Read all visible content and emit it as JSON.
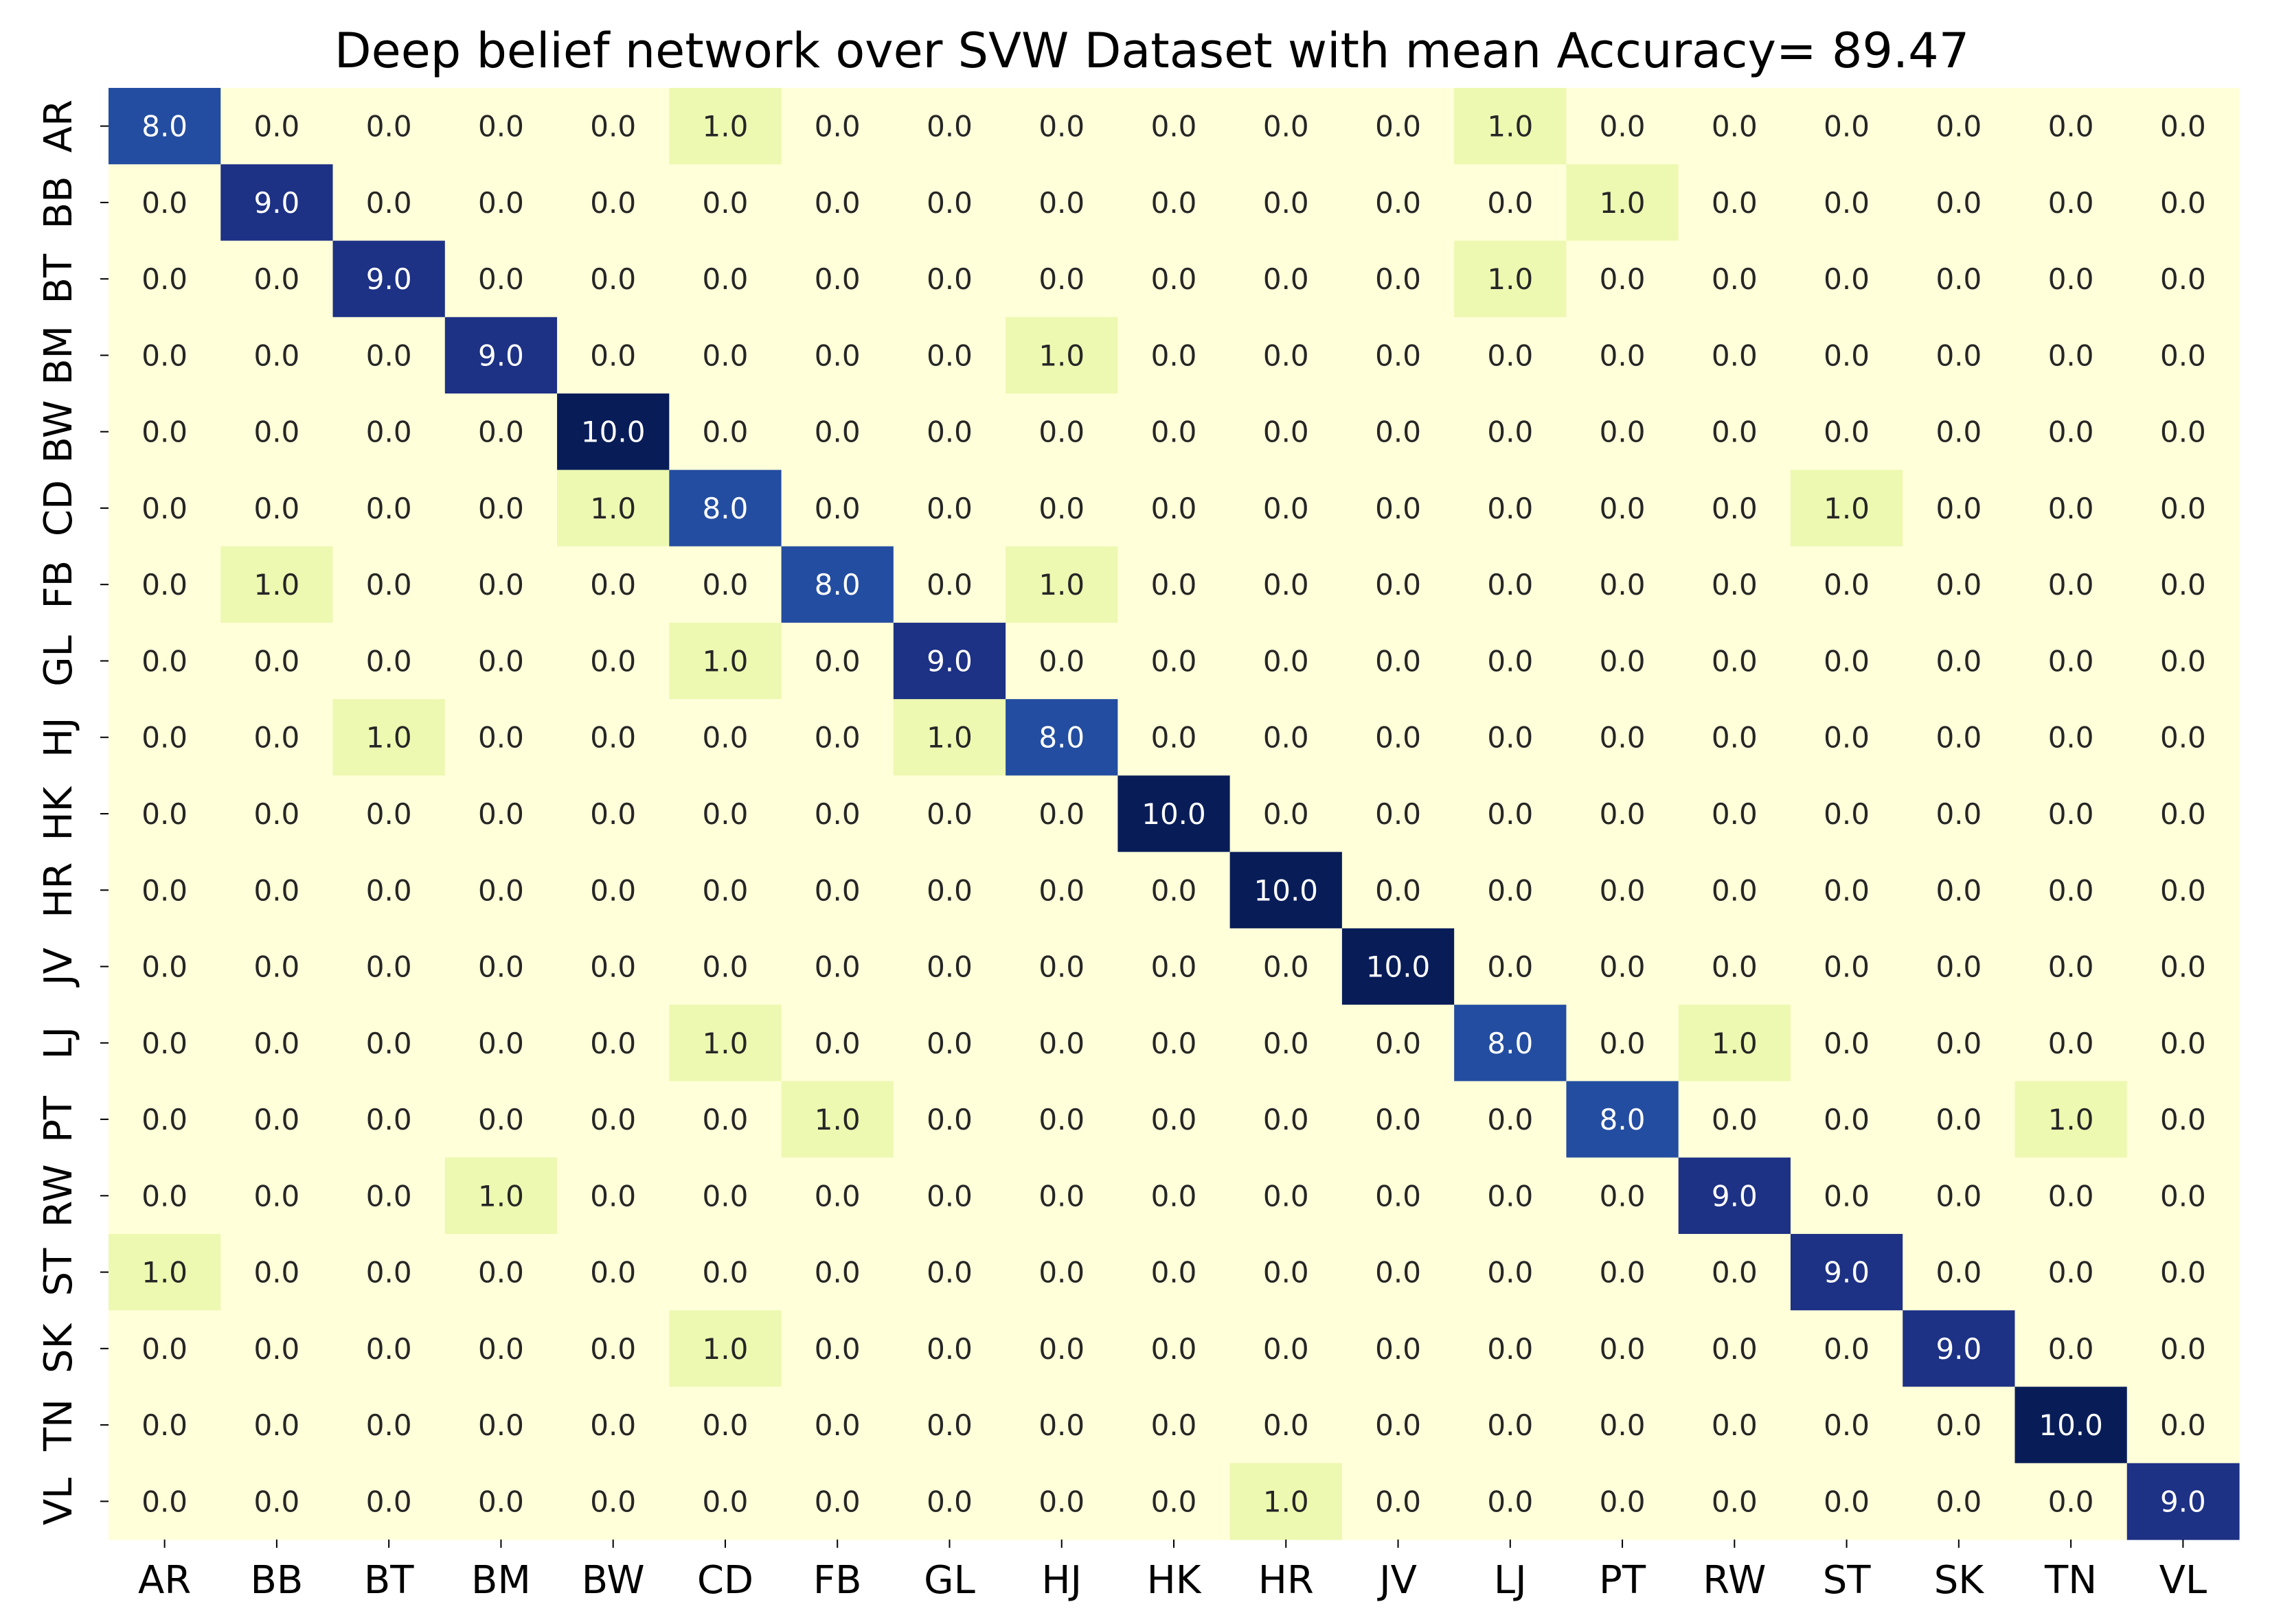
{
  "chart_data": {
    "type": "heatmap",
    "title": "Deep belief network over SVW Dataset with mean Accuracy= 89.47",
    "xlabel": "",
    "ylabel": "",
    "x_categories": [
      "AR",
      "BB",
      "BT",
      "BM",
      "BW",
      "CD",
      "FB",
      "GL",
      "HJ",
      "HK",
      "HR",
      "JV",
      "LJ",
      "PT",
      "RW",
      "ST",
      "SK",
      "TN",
      "VL"
    ],
    "y_categories": [
      "AR",
      "BB",
      "BT",
      "BM",
      "BW",
      "CD",
      "FB",
      "GL",
      "HJ",
      "HK",
      "HR",
      "JV",
      "LJ",
      "PT",
      "RW",
      "ST",
      "SK",
      "TN",
      "VL"
    ],
    "value_range": [
      0,
      10
    ],
    "colormap": "YlGnBu",
    "colorbar": false,
    "values": [
      [
        8,
        0,
        0,
        0,
        0,
        1,
        0,
        0,
        0,
        0,
        0,
        0,
        1,
        0,
        0,
        0,
        0,
        0,
        0
      ],
      [
        0,
        9,
        0,
        0,
        0,
        0,
        0,
        0,
        0,
        0,
        0,
        0,
        0,
        1,
        0,
        0,
        0,
        0,
        0
      ],
      [
        0,
        0,
        9,
        0,
        0,
        0,
        0,
        0,
        0,
        0,
        0,
        0,
        1,
        0,
        0,
        0,
        0,
        0,
        0
      ],
      [
        0,
        0,
        0,
        9,
        0,
        0,
        0,
        0,
        1,
        0,
        0,
        0,
        0,
        0,
        0,
        0,
        0,
        0,
        0
      ],
      [
        0,
        0,
        0,
        0,
        10,
        0,
        0,
        0,
        0,
        0,
        0,
        0,
        0,
        0,
        0,
        0,
        0,
        0,
        0
      ],
      [
        0,
        0,
        0,
        0,
        1,
        8,
        0,
        0,
        0,
        0,
        0,
        0,
        0,
        0,
        0,
        1,
        0,
        0,
        0
      ],
      [
        0,
        1,
        0,
        0,
        0,
        0,
        8,
        0,
        1,
        0,
        0,
        0,
        0,
        0,
        0,
        0,
        0,
        0,
        0
      ],
      [
        0,
        0,
        0,
        0,
        0,
        1,
        0,
        9,
        0,
        0,
        0,
        0,
        0,
        0,
        0,
        0,
        0,
        0,
        0
      ],
      [
        0,
        0,
        1,
        0,
        0,
        0,
        0,
        1,
        8,
        0,
        0,
        0,
        0,
        0,
        0,
        0,
        0,
        0,
        0
      ],
      [
        0,
        0,
        0,
        0,
        0,
        0,
        0,
        0,
        0,
        10,
        0,
        0,
        0,
        0,
        0,
        0,
        0,
        0,
        0
      ],
      [
        0,
        0,
        0,
        0,
        0,
        0,
        0,
        0,
        0,
        0,
        10,
        0,
        0,
        0,
        0,
        0,
        0,
        0,
        0
      ],
      [
        0,
        0,
        0,
        0,
        0,
        0,
        0,
        0,
        0,
        0,
        0,
        10,
        0,
        0,
        0,
        0,
        0,
        0,
        0
      ],
      [
        0,
        0,
        0,
        0,
        0,
        1,
        0,
        0,
        0,
        0,
        0,
        0,
        8,
        0,
        1,
        0,
        0,
        0,
        0
      ],
      [
        0,
        0,
        0,
        0,
        0,
        0,
        1,
        0,
        0,
        0,
        0,
        0,
        0,
        8,
        0,
        0,
        0,
        1,
        0
      ],
      [
        0,
        0,
        0,
        1,
        0,
        0,
        0,
        0,
        0,
        0,
        0,
        0,
        0,
        0,
        9,
        0,
        0,
        0,
        0
      ],
      [
        1,
        0,
        0,
        0,
        0,
        0,
        0,
        0,
        0,
        0,
        0,
        0,
        0,
        0,
        0,
        9,
        0,
        0,
        0
      ],
      [
        0,
        0,
        0,
        0,
        0,
        1,
        0,
        0,
        0,
        0,
        0,
        0,
        0,
        0,
        0,
        0,
        9,
        0,
        0
      ],
      [
        0,
        0,
        0,
        0,
        0,
        0,
        0,
        0,
        0,
        0,
        0,
        0,
        0,
        0,
        0,
        0,
        0,
        10,
        0
      ],
      [
        0,
        0,
        0,
        0,
        0,
        0,
        0,
        0,
        0,
        0,
        1,
        0,
        0,
        0,
        0,
        0,
        0,
        0,
        9
      ]
    ],
    "value_format": "one-decimal",
    "colors": {
      "zero": "#ffffd9",
      "one": "#edf8b1",
      "eight": "#234da0",
      "nine": "#1d3185",
      "ten": "#081d58",
      "text_light": "#ffffff",
      "text_dark": "#262626"
    }
  }
}
